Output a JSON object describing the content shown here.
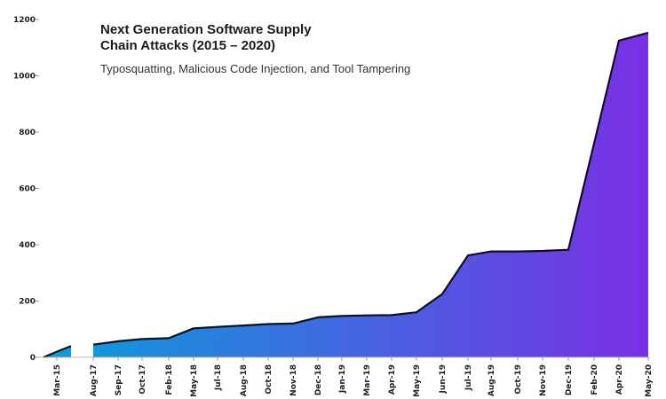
{
  "chart_data": {
    "type": "area",
    "title_line1": "Next Generation Software Supply",
    "title_line2": "Chain Attacks (2015 – 2020)",
    "subtitle": "Typosquatting, Malicious Code Injection, and Tool Tampering",
    "xlabel": "",
    "ylabel": "",
    "ylim": [
      0,
      1200
    ],
    "yticks": [
      0,
      200,
      400,
      600,
      800,
      1000,
      1200
    ],
    "grid": false,
    "gradient_colors": [
      "#0a9fdc",
      "#7a2fe4"
    ],
    "line_color": "#111111",
    "segments": [
      [
        {
          "x": "",
          "y": 0
        },
        {
          "x": "Mar-15",
          "y": 20
        },
        {
          "x": "",
          "y": 40
        }
      ],
      [
        {
          "x": "Aug-17",
          "y": 45
        },
        {
          "x": "Sep-17",
          "y": 57
        },
        {
          "x": "Oct-17",
          "y": 65
        },
        {
          "x": "Feb-18",
          "y": 68
        },
        {
          "x": "May-18",
          "y": 103
        },
        {
          "x": "Jul-18",
          "y": 108
        },
        {
          "x": "Aug-18",
          "y": 113
        },
        {
          "x": "Oct-18",
          "y": 118
        },
        {
          "x": "Nov-18",
          "y": 120
        },
        {
          "x": "Dec-18",
          "y": 142
        },
        {
          "x": "Jan-19",
          "y": 147
        },
        {
          "x": "Mar-19",
          "y": 149
        },
        {
          "x": "Apr-19",
          "y": 150
        },
        {
          "x": "May-19",
          "y": 160
        },
        {
          "x": "Jun-19",
          "y": 225
        },
        {
          "x": "Jul-19",
          "y": 362
        },
        {
          "x": "Aug-19",
          "y": 376
        },
        {
          "x": "Oct-19",
          "y": 376
        },
        {
          "x": "Nov-19",
          "y": 378
        },
        {
          "x": "Dec-19",
          "y": 382
        },
        {
          "x": "Feb-20",
          "y": 760
        },
        {
          "x": "Apr-20",
          "y": 1125
        },
        {
          "x": "May-20",
          "y": 1153
        }
      ]
    ]
  }
}
